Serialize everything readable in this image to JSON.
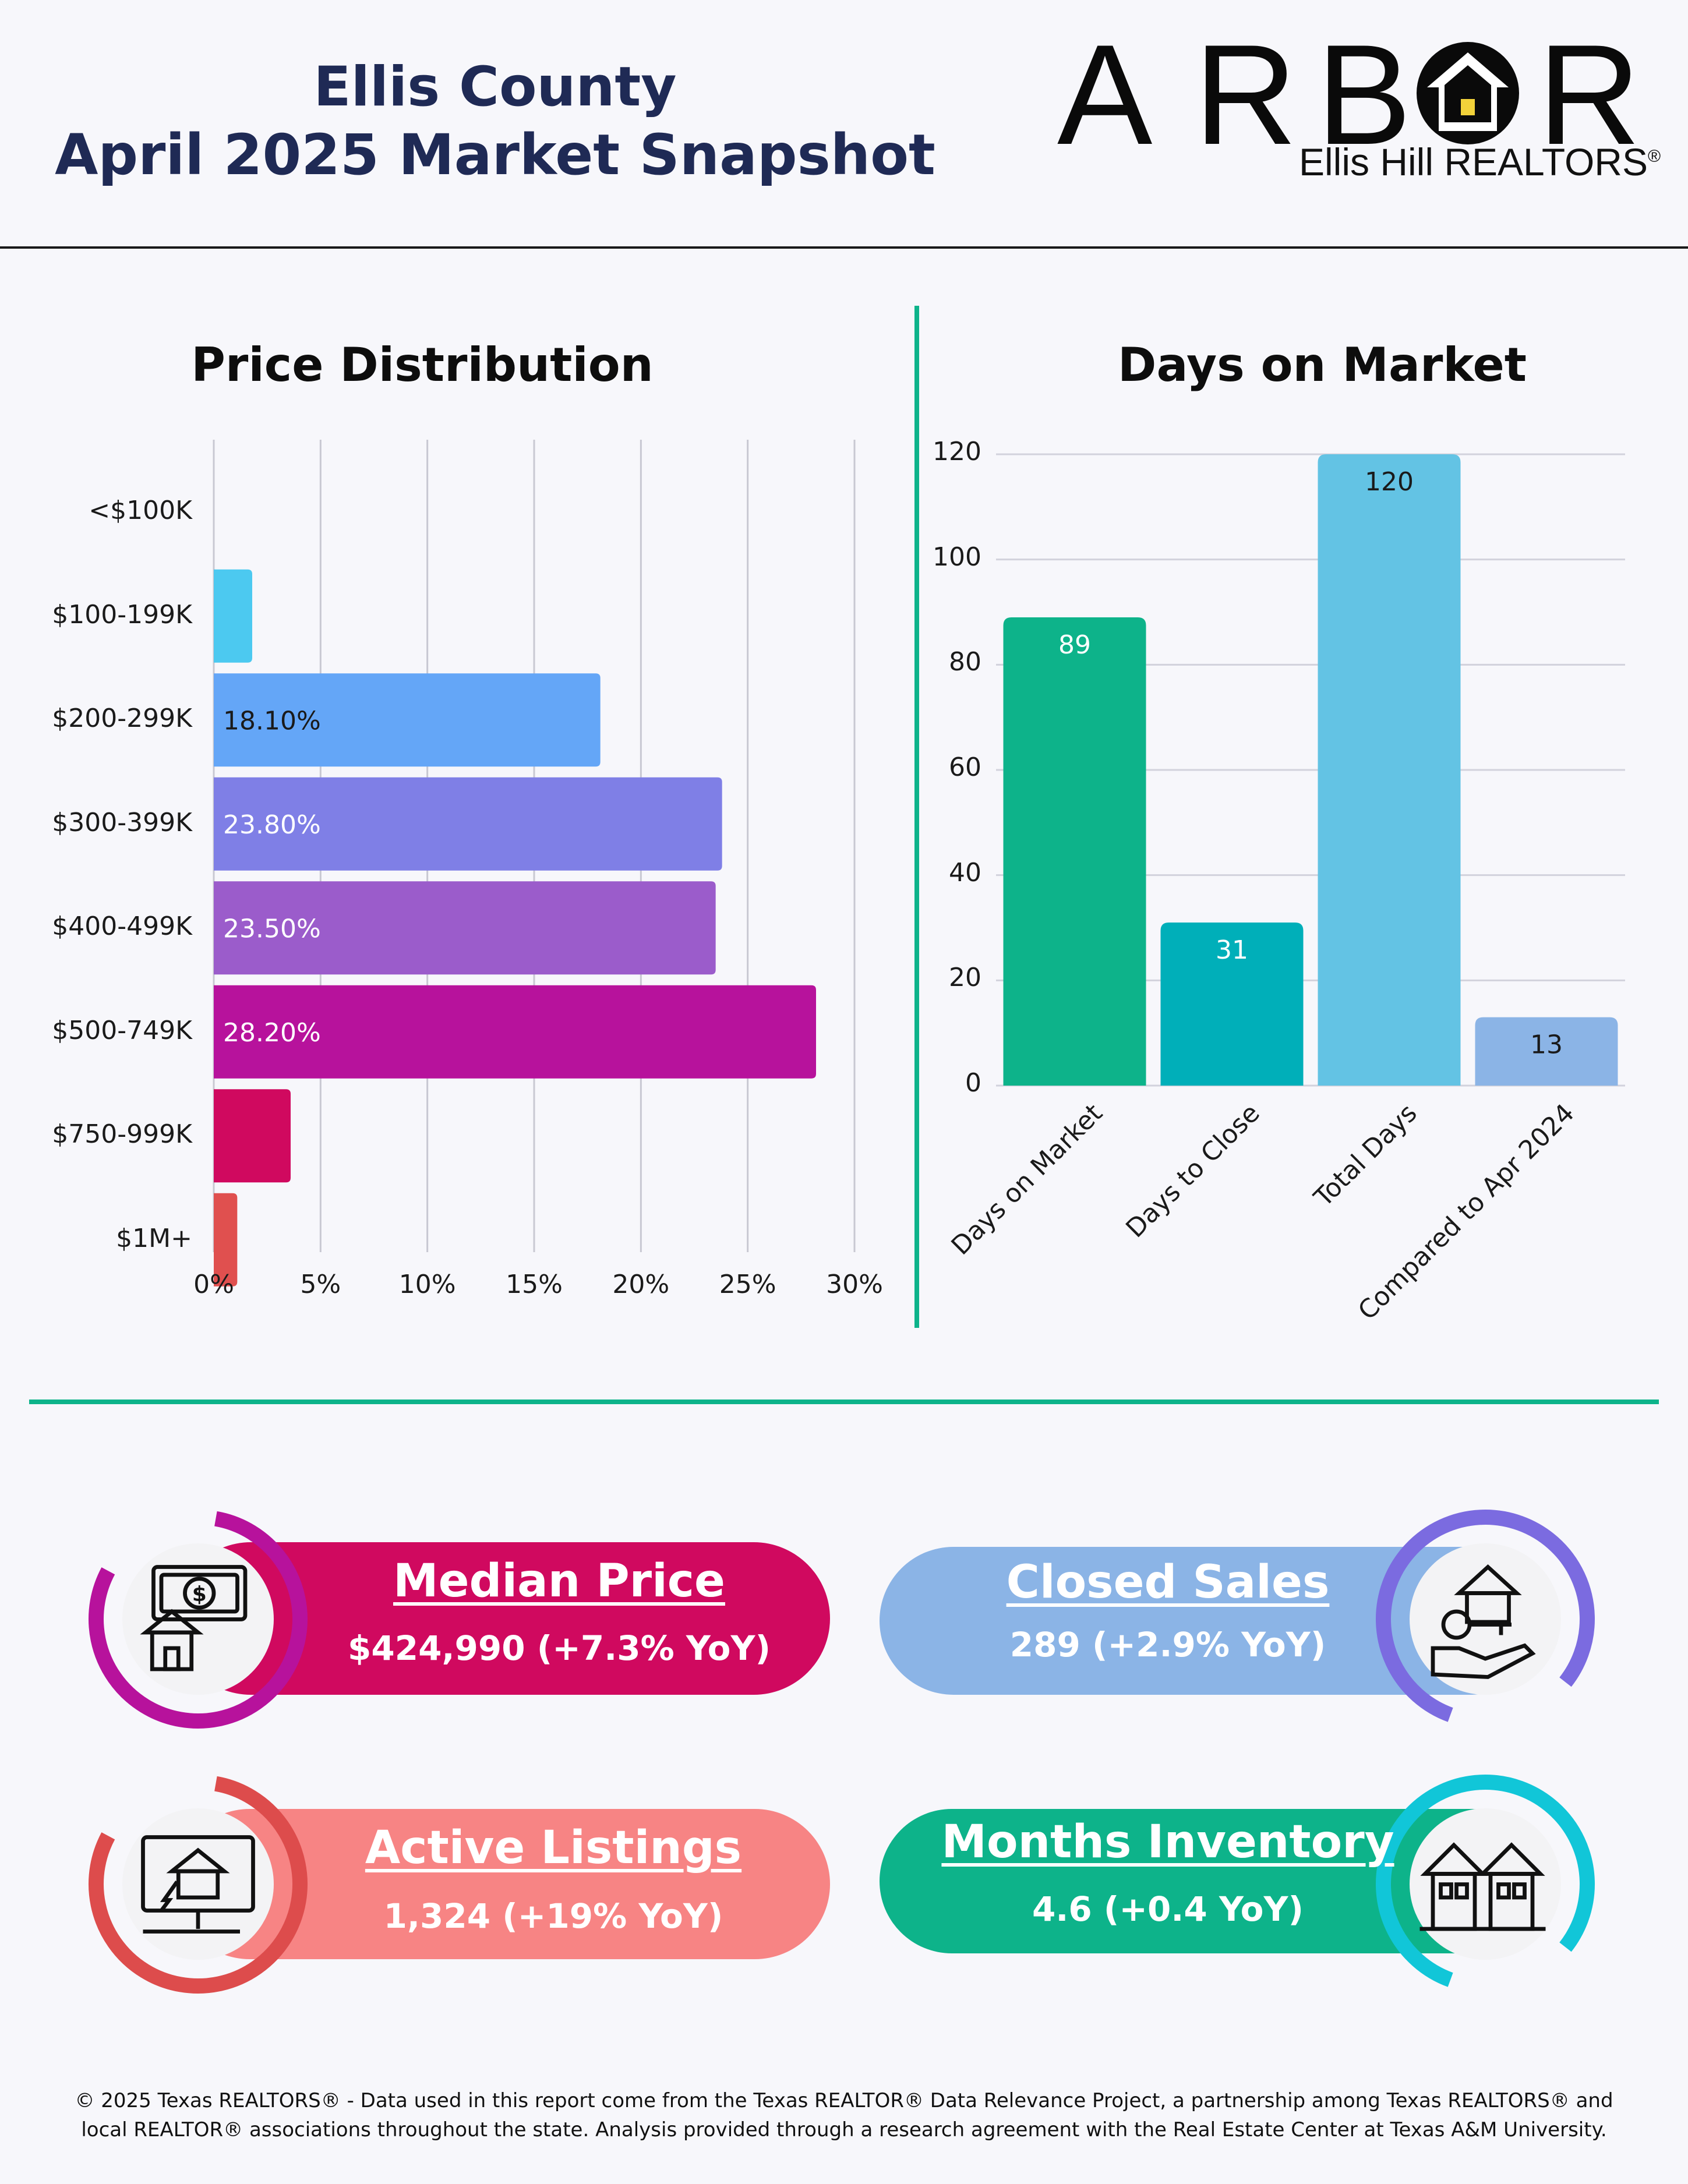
{
  "header": {
    "title_line1": "Ellis County",
    "title_line2": "April 2025 Market Snapshot",
    "logo_letters": [
      "A",
      "R",
      "B",
      "",
      "R"
    ],
    "logo_sub": "Ellis Hill REALTORS",
    "logo_reg": "®"
  },
  "colors": {
    "teal": "#0db38a",
    "navy": "#1f2a55"
  },
  "chart_data": [
    {
      "type": "bar",
      "orientation": "horizontal",
      "title": "Price Distribution",
      "categories": [
        "<$100K",
        "$100-199K",
        "$200-299K",
        "$300-399K",
        "$400-499K",
        "$500-749K",
        "$750-999K",
        "$1M+"
      ],
      "values": [
        0,
        1.8,
        18.1,
        23.8,
        23.5,
        28.2,
        3.6,
        1.1
      ],
      "labels": [
        "",
        "",
        "18.10%",
        "23.80%",
        "23.50%",
        "28.20%",
        "",
        ""
      ],
      "colors": [
        "#4cc9f0",
        "#4cc9f0",
        "#64a6f7",
        "#7f7fe6",
        "#9b5ccb",
        "#b7129c",
        "#d0095f",
        "#e0504f"
      ],
      "label_colors": [
        "#ffffff",
        "#ffffff",
        "#1a1a1a",
        "#ffffff",
        "#ffffff",
        "#ffffff",
        "#ffffff",
        "#ffffff"
      ],
      "xlim": [
        0,
        30
      ],
      "xticks": [
        0,
        5,
        10,
        15,
        20,
        25,
        30
      ],
      "xtick_labels": [
        "0%",
        "5%",
        "10%",
        "15%",
        "20%",
        "25%",
        "30%"
      ],
      "grid": true
    },
    {
      "type": "bar",
      "title": "Days on Market",
      "categories": [
        "Days on Market",
        "Days to Close",
        "Total Days",
        "Compared to Apr 2024"
      ],
      "values": [
        89,
        31,
        120,
        13
      ],
      "labels": [
        "89",
        "31",
        "120",
        "13"
      ],
      "colors": [
        "#0db38a",
        "#00afb9",
        "#63c3e4",
        "#8bb4e6"
      ],
      "label_colors": [
        "#ffffff",
        "#ffffff",
        "#1a1a1a",
        "#1a1a1a"
      ],
      "ylim": [
        0,
        120
      ],
      "yticks": [
        0,
        20,
        40,
        60,
        80,
        100,
        120
      ],
      "grid": true
    }
  ],
  "kpis": [
    {
      "title": "Median Price",
      "value": "$424,990 (+7.3% YoY)",
      "fill": "#d0095f",
      "ring": "#b7129c",
      "text_color": "#ffffff",
      "icon": "money-house-icon"
    },
    {
      "title": "Closed Sales",
      "value": "289 (+2.9% YoY)",
      "fill": "#8bb4e6",
      "ring": "#7b6be0",
      "text_color": "#ffffff",
      "icon": "house-key-hand-icon"
    },
    {
      "title": "Active Listings",
      "value": "1,324 (+19% YoY)",
      "fill": "#f78484",
      "ring": "#dd4c4c",
      "text_color": "#ffffff",
      "icon": "computer-house-icon"
    },
    {
      "title": "Months Inventory",
      "value": "4.6 (+0.4 YoY)",
      "fill": "#0db38a",
      "ring": "#11c6d8",
      "text_color": "#ffffff",
      "icon": "townhouses-icon"
    }
  ],
  "footer": {
    "text": "© 2025 Texas REALTORS® - Data used in this report come from the Texas REALTOR® Data Relevance Project, a partnership among Texas REALTORS® and local REALTOR® associations throughout the state. Analysis provided through a research agreement with the Real Estate Center at Texas A&M University."
  }
}
